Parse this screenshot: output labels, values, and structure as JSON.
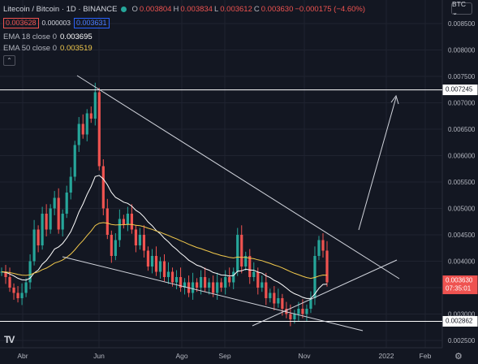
{
  "legend": {
    "symbol": "Litecoin / Bitcoin · 1D · BINANCE",
    "ohlc": [
      {
        "label": "O",
        "value": "0.003804"
      },
      {
        "label": "H",
        "value": "0.003834"
      },
      {
        "label": "L",
        "value": "0.003612"
      },
      {
        "label": "C",
        "value": "0.003630"
      }
    ],
    "change": "−0.000175 (−4.60%)",
    "bid": "0.003628",
    "spread": "0.000003",
    "ask": "0.003631",
    "ema18_label": "EMA 18 close 0",
    "ema18_value": "0.003695",
    "ema50_label": "EMA 50 close 0",
    "ema50_value": "0.003519",
    "collapse_glyph": "⌃"
  },
  "currency_button": "BTC ⌄",
  "logo_text": "TV",
  "settings_glyph": "⚙",
  "colors": {
    "up": "#26a69a",
    "down": "#ef5350",
    "ema18": "#ffffff",
    "ema50": "#f2c94c",
    "background": "#131722"
  },
  "chart_data": {
    "type": "candlestick",
    "y_ticks": [
      "0.008500",
      "0.008000",
      "0.007500",
      "0.007000",
      "0.006500",
      "0.006000",
      "0.005500",
      "0.005000",
      "0.004500",
      "0.004000",
      "0.003500",
      "0.003000",
      "0.002500"
    ],
    "x_ticks": [
      "Abr",
      "Jun",
      "Ago",
      "Sep",
      "Nov",
      "2022",
      "Feb"
    ],
    "price_labels": {
      "resistance": "0.007245",
      "support": "0.002862",
      "last_price": "0.003630",
      "countdown": "07:35:01"
    },
    "lines": {
      "resistance": 0.007245,
      "support": 0.002862
    },
    "close_path": [
      0.0038,
      0.0037,
      0.0035,
      0.0034,
      0.0033,
      0.0034,
      0.0036,
      0.004,
      0.0046,
      0.0043,
      0.0049,
      0.0046,
      0.005,
      0.0052,
      0.0046,
      0.0049,
      0.0053,
      0.0056,
      0.0062,
      0.0066,
      0.0064,
      0.0068,
      0.0067,
      0.0072,
      0.0058,
      0.005,
      0.0045,
      0.0041,
      0.0044,
      0.0048,
      0.0047,
      0.0049,
      0.0046,
      0.0043,
      0.0045,
      0.0042,
      0.0039,
      0.0041,
      0.0038,
      0.004,
      0.0037,
      0.0038,
      0.0036,
      0.0037,
      0.0035,
      0.0036,
      0.0034,
      0.0036,
      0.0035,
      0.0037,
      0.0035,
      0.0036,
      0.0034,
      0.0036,
      0.0035,
      0.0037,
      0.0036,
      0.0038,
      0.0045,
      0.0039,
      0.0041,
      0.0037,
      0.0038,
      0.0035,
      0.0036,
      0.0033,
      0.0034,
      0.0032,
      0.0033,
      0.0031,
      0.003,
      0.0029,
      0.003,
      0.0031,
      0.003,
      0.0031,
      0.0033,
      0.0041,
      0.0044,
      0.0042,
      0.0036
    ]
  }
}
